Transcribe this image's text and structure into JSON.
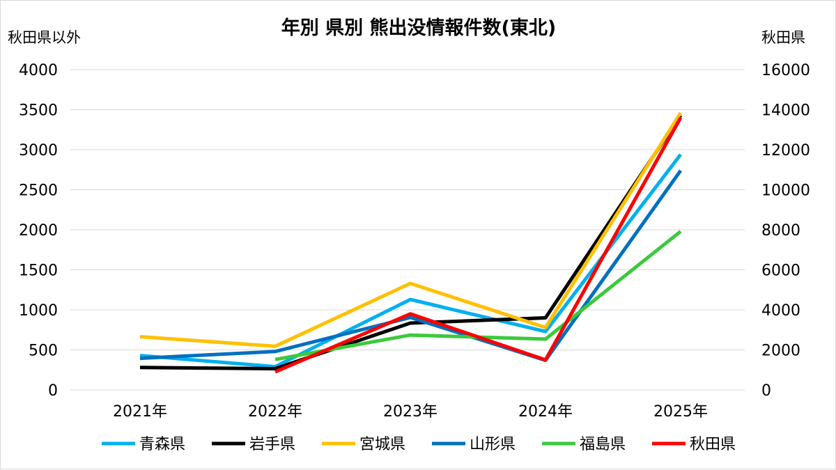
{
  "chart_data": {
    "type": "line",
    "title": "年別 県別 熊出没情報件数(東北)",
    "left_axis_label": "秋田県以外",
    "right_axis_label": "秋田県",
    "categories": [
      "2021年",
      "2022年",
      "2023年",
      "2024年",
      "2025年"
    ],
    "left_axis": {
      "min": 0,
      "max": 4000,
      "ticks": [
        "0",
        "500",
        "1000",
        "1500",
        "2000",
        "2500",
        "3000",
        "3500",
        "4000"
      ]
    },
    "right_axis": {
      "min": 0,
      "max": 16000,
      "ticks": [
        "0",
        "2000",
        "4000",
        "6000",
        "8000",
        "10000",
        "12000",
        "14000",
        "16000"
      ]
    },
    "grid": true,
    "legend_position": "bottom",
    "series": [
      {
        "name": "青森県",
        "axis": "left",
        "color": "#00B0F0",
        "values": [
          430,
          290,
          1130,
          730,
          2940
        ]
      },
      {
        "name": "岩手県",
        "axis": "left",
        "color": "#000000",
        "values": [
          280,
          265,
          835,
          900,
          3430
        ]
      },
      {
        "name": "宮城県",
        "axis": "left",
        "color": "#FFC000",
        "values": [
          665,
          545,
          1330,
          780,
          3460
        ]
      },
      {
        "name": "山形県",
        "axis": "left",
        "color": "#0070C0",
        "values": [
          395,
          480,
          905,
          370,
          2740
        ]
      },
      {
        "name": "福島県",
        "axis": "left",
        "color": "#3BC93B",
        "values": [
          null,
          380,
          685,
          635,
          1980
        ]
      },
      {
        "name": "秋田県",
        "axis": "right",
        "color": "#FF0000",
        "values": [
          null,
          900,
          3800,
          1500,
          13600
        ]
      }
    ]
  }
}
